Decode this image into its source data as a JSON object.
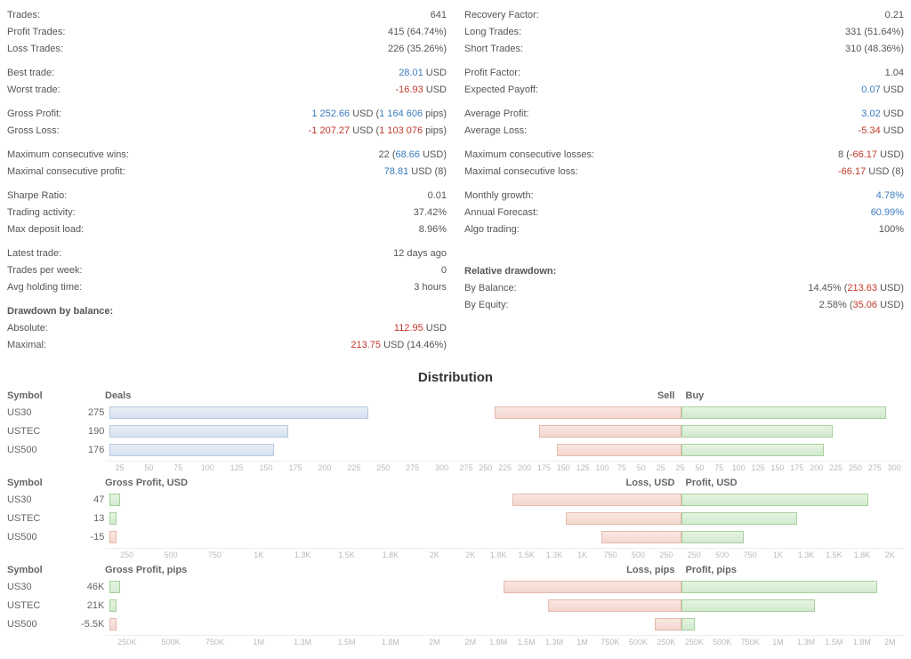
{
  "left_stats": [
    [
      {
        "label": "Trades:",
        "val": "641"
      },
      {
        "label": "Profit Trades:",
        "val": "415 (64.74%)"
      },
      {
        "label": "Loss Trades:",
        "val": "226 (35.26%)"
      }
    ],
    [
      {
        "label": "Best trade:",
        "val": "28.01",
        "suffix": " USD",
        "cls": "blue"
      },
      {
        "label": "Worst trade:",
        "val": "-16.93",
        "suffix": " USD",
        "cls": "red"
      }
    ],
    [
      {
        "label": "Gross Profit:",
        "val": "1 252.66",
        "suffix": " USD (",
        "extra": "1 164 606",
        "end": " pips)",
        "cls": "blue",
        "extra_cls": "blue"
      },
      {
        "label": "Gross Loss:",
        "val": "-1 207.27",
        "suffix": " USD (",
        "extra": "1 103 076",
        "end": " pips)",
        "cls": "red",
        "extra_cls": "red"
      }
    ],
    [
      {
        "label": "Maximum consecutive wins:",
        "val": "22 (",
        "extra": "68.66",
        "end": " USD)",
        "extra_cls": "blue"
      },
      {
        "label": "Maximal consecutive profit:",
        "val": "",
        "extra": "78.81",
        "end": " USD (8)",
        "extra_cls": "blue"
      }
    ],
    [
      {
        "label": "Sharpe Ratio:",
        "val": "0.01"
      },
      {
        "label": "Trading activity:",
        "val": "37.42%"
      },
      {
        "label": "Max deposit load:",
        "val": "8.96%"
      }
    ],
    [
      {
        "label": "Latest trade:",
        "val": "12 days ago"
      },
      {
        "label": "Trades per week:",
        "val": "0"
      },
      {
        "label": "Avg holding time:",
        "val": "3 hours"
      }
    ],
    [
      {
        "label": "Drawdown by balance:",
        "val": "",
        "bold": true
      },
      {
        "label": "Absolute:",
        "val": "",
        "extra": "112.95",
        "end": " USD",
        "extra_cls": "red"
      },
      {
        "label": "Maximal:",
        "val": "",
        "extra": "213.75",
        "end": " USD (14.46%)",
        "extra_cls": "red"
      }
    ]
  ],
  "right_stats": [
    [
      {
        "label": "Recovery Factor:",
        "val": "0.21"
      },
      {
        "label": "Long Trades:",
        "val": "331 (51.64%)"
      },
      {
        "label": "Short Trades:",
        "val": "310 (48.36%)"
      }
    ],
    [
      {
        "label": "Profit Factor:",
        "val": "1.04"
      },
      {
        "label": "Expected Payoff:",
        "val": "",
        "extra": "0.07",
        "end": " USD",
        "extra_cls": "blue"
      }
    ],
    [
      {
        "label": "Average Profit:",
        "val": "",
        "extra": "3.02",
        "end": " USD",
        "extra_cls": "blue"
      },
      {
        "label": "Average Loss:",
        "val": "",
        "extra": "-5.34",
        "end": " USD",
        "extra_cls": "red"
      }
    ],
    [
      {
        "label": "Maximum consecutive losses:",
        "val": "8 (",
        "extra": "-66.17",
        "end": " USD)",
        "extra_cls": "red"
      },
      {
        "label": "Maximal consecutive loss:",
        "val": "",
        "extra": "-66.17",
        "end": " USD (8)",
        "extra_cls": "red"
      }
    ],
    [
      {
        "label": "Monthly growth:",
        "val": "",
        "extra": "4.78%",
        "extra_cls": "blue"
      },
      {
        "label": "Annual Forecast:",
        "val": "",
        "extra": "60.99%",
        "extra_cls": "blue"
      },
      {
        "label": "Algo trading:",
        "val": "100%"
      }
    ],
    [
      {
        "label": "",
        "val": ""
      },
      {
        "label": "",
        "val": ""
      },
      {
        "label": "",
        "val": ""
      }
    ],
    [
      {
        "label": "Relative drawdown:",
        "val": "",
        "bold": true
      },
      {
        "label": "By Balance:",
        "val": "14.45% (",
        "extra": "213.63",
        "end": " USD)",
        "extra_cls": "red"
      },
      {
        "label": "By Equity:",
        "val": "2.58% (",
        "extra": "35.06",
        "end": " USD)",
        "extra_cls": "red"
      }
    ]
  ],
  "distribution_title": "Distribution",
  "charts": {
    "deals": {
      "left_label": "Deals",
      "right_sell": "Sell",
      "right_buy": "Buy",
      "rows": [
        {
          "symbol": "US30",
          "value": "275",
          "left_pct": 74,
          "sell_pct": 42,
          "buy_pct": 46
        },
        {
          "symbol": "USTEC",
          "value": "190",
          "left_pct": 51,
          "sell_pct": 32,
          "buy_pct": 34
        },
        {
          "symbol": "US500",
          "value": "176",
          "left_pct": 47,
          "sell_pct": 28,
          "buy_pct": 32
        }
      ],
      "axis_left": [
        "25",
        "50",
        "75",
        "100",
        "125",
        "150",
        "175",
        "200",
        "225",
        "250",
        "275",
        "300"
      ],
      "axis_right": [
        "275",
        "250",
        "225",
        "200",
        "175",
        "150",
        "125",
        "100",
        "75",
        "50",
        "25",
        "25",
        "50",
        "75",
        "100",
        "125",
        "150",
        "175",
        "200",
        "225",
        "250",
        "275",
        "300"
      ]
    },
    "profit_usd": {
      "left_label": "Gross Profit, USD",
      "right_sell": "Loss, USD",
      "right_buy": "Profit, USD",
      "rows": [
        {
          "symbol": "US30",
          "value": "47",
          "left_pct": 3,
          "sell_pct": 38,
          "buy_pct": 42,
          "bar": "green"
        },
        {
          "symbol": "USTEC",
          "value": "13",
          "left_pct": 2,
          "sell_pct": 26,
          "buy_pct": 26,
          "bar": "green"
        },
        {
          "symbol": "US500",
          "value": "-15",
          "left_pct": 2,
          "sell_pct": 18,
          "buy_pct": 14,
          "bar": "red"
        }
      ],
      "axis_left": [
        "250",
        "500",
        "750",
        "1K",
        "1.3K",
        "1.5K",
        "1.8K",
        "2K"
      ],
      "axis_right": [
        "2K",
        "1.8K",
        "1.5K",
        "1.3K",
        "1K",
        "750",
        "500",
        "250",
        "250",
        "500",
        "750",
        "1K",
        "1.3K",
        "1.5K",
        "1.8K",
        "2K"
      ]
    },
    "profit_pips": {
      "left_label": "Gross Profit, pips",
      "right_sell": "Loss, pips",
      "right_buy": "Profit, pips",
      "rows": [
        {
          "symbol": "US30",
          "value": "46K",
          "left_pct": 3,
          "sell_pct": 40,
          "buy_pct": 44,
          "bar": "green"
        },
        {
          "symbol": "USTEC",
          "value": "21K",
          "left_pct": 2,
          "sell_pct": 30,
          "buy_pct": 30,
          "bar": "green"
        },
        {
          "symbol": "US500",
          "value": "-5.5K",
          "left_pct": 2,
          "sell_pct": 6,
          "buy_pct": 3,
          "bar": "red"
        }
      ],
      "axis_left": [
        "250K",
        "500K",
        "750K",
        "1M",
        "1.3M",
        "1.5M",
        "1.8M",
        "2M"
      ],
      "axis_right": [
        "2M",
        "1.8M",
        "1.5M",
        "1.3M",
        "1M",
        "750K",
        "500K",
        "250K",
        "250K",
        "500K",
        "750K",
        "1M",
        "1.3M",
        "1.5M",
        "1.8M",
        "2M"
      ]
    }
  },
  "symbol_header": "Symbol"
}
